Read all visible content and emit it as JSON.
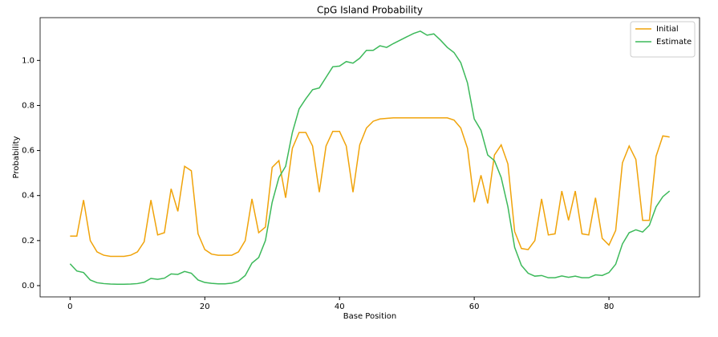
{
  "chart_data": {
    "type": "line",
    "title": "CpG Island Probability",
    "x_label": "Base Position",
    "y_label": "Probability",
    "x": [
      0,
      1,
      2,
      3,
      4,
      5,
      6,
      7,
      8,
      9,
      10,
      11,
      12,
      13,
      14,
      15,
      16,
      17,
      18,
      19,
      20,
      21,
      22,
      23,
      24,
      25,
      26,
      27,
      28,
      29,
      30,
      31,
      32,
      33,
      34,
      35,
      36,
      37,
      38,
      39,
      40,
      41,
      42,
      43,
      44,
      45,
      46,
      47,
      48,
      49,
      50,
      51,
      52,
      53,
      54,
      55,
      56,
      57,
      58,
      59,
      60,
      61,
      62,
      63,
      64,
      65,
      66,
      67,
      68,
      69,
      70,
      71,
      72,
      73,
      74,
      75,
      76,
      77,
      78,
      79,
      80,
      81,
      82,
      83,
      84,
      85,
      86,
      87,
      88,
      89
    ],
    "series": [
      {
        "name": "Initial",
        "color": "#f0a30a",
        "values": [
          0.22,
          0.22,
          0.38,
          0.2,
          0.15,
          0.135,
          0.13,
          0.13,
          0.13,
          0.135,
          0.15,
          0.195,
          0.38,
          0.225,
          0.235,
          0.43,
          0.33,
          0.53,
          0.51,
          0.23,
          0.16,
          0.14,
          0.135,
          0.135,
          0.135,
          0.15,
          0.2,
          0.385,
          0.235,
          0.26,
          0.525,
          0.555,
          0.39,
          0.61,
          0.68,
          0.68,
          0.62,
          0.415,
          0.62,
          0.685,
          0.685,
          0.62,
          0.415,
          0.625,
          0.7,
          0.73,
          0.74,
          0.743,
          0.745,
          0.745,
          0.745,
          0.745,
          0.745,
          0.745,
          0.745,
          0.745,
          0.745,
          0.735,
          0.7,
          0.61,
          0.37,
          0.49,
          0.365,
          0.58,
          0.625,
          0.54,
          0.24,
          0.165,
          0.16,
          0.2,
          0.385,
          0.225,
          0.23,
          0.42,
          0.29,
          0.42,
          0.23,
          0.225,
          0.39,
          0.21,
          0.18,
          0.245,
          0.545,
          0.62,
          0.56,
          0.29,
          0.29,
          0.575,
          0.665,
          0.66
        ]
      },
      {
        "name": "Estimate",
        "color": "#3cb95a",
        "values": [
          0.097,
          0.065,
          0.058,
          0.025,
          0.013,
          0.009,
          0.007,
          0.006,
          0.006,
          0.007,
          0.009,
          0.015,
          0.032,
          0.028,
          0.033,
          0.052,
          0.05,
          0.063,
          0.055,
          0.025,
          0.014,
          0.01,
          0.008,
          0.008,
          0.011,
          0.02,
          0.045,
          0.1,
          0.125,
          0.2,
          0.37,
          0.48,
          0.53,
          0.68,
          0.785,
          0.83,
          0.87,
          0.878,
          0.925,
          0.972,
          0.975,
          0.995,
          0.988,
          1.01,
          1.045,
          1.045,
          1.065,
          1.058,
          1.075,
          1.09,
          1.105,
          1.12,
          1.13,
          1.112,
          1.118,
          1.09,
          1.058,
          1.035,
          0.99,
          0.9,
          0.74,
          0.69,
          0.58,
          0.555,
          0.48,
          0.35,
          0.17,
          0.09,
          0.055,
          0.042,
          0.045,
          0.035,
          0.035,
          0.043,
          0.037,
          0.042,
          0.035,
          0.035,
          0.048,
          0.045,
          0.058,
          0.095,
          0.185,
          0.235,
          0.248,
          0.238,
          0.268,
          0.35,
          0.395,
          0.42
        ]
      }
    ],
    "xlim": [
      -4.45,
      93.45
    ],
    "ylim": [
      -0.05,
      1.19
    ],
    "xticks": [
      0,
      20,
      40,
      60,
      80
    ],
    "yticks": [
      {
        "value": 0,
        "label": "0.0"
      },
      0.2,
      0.4,
      0.6,
      0.8,
      {
        "value": 1,
        "label": "1.0"
      }
    ],
    "legend": "upper right"
  }
}
